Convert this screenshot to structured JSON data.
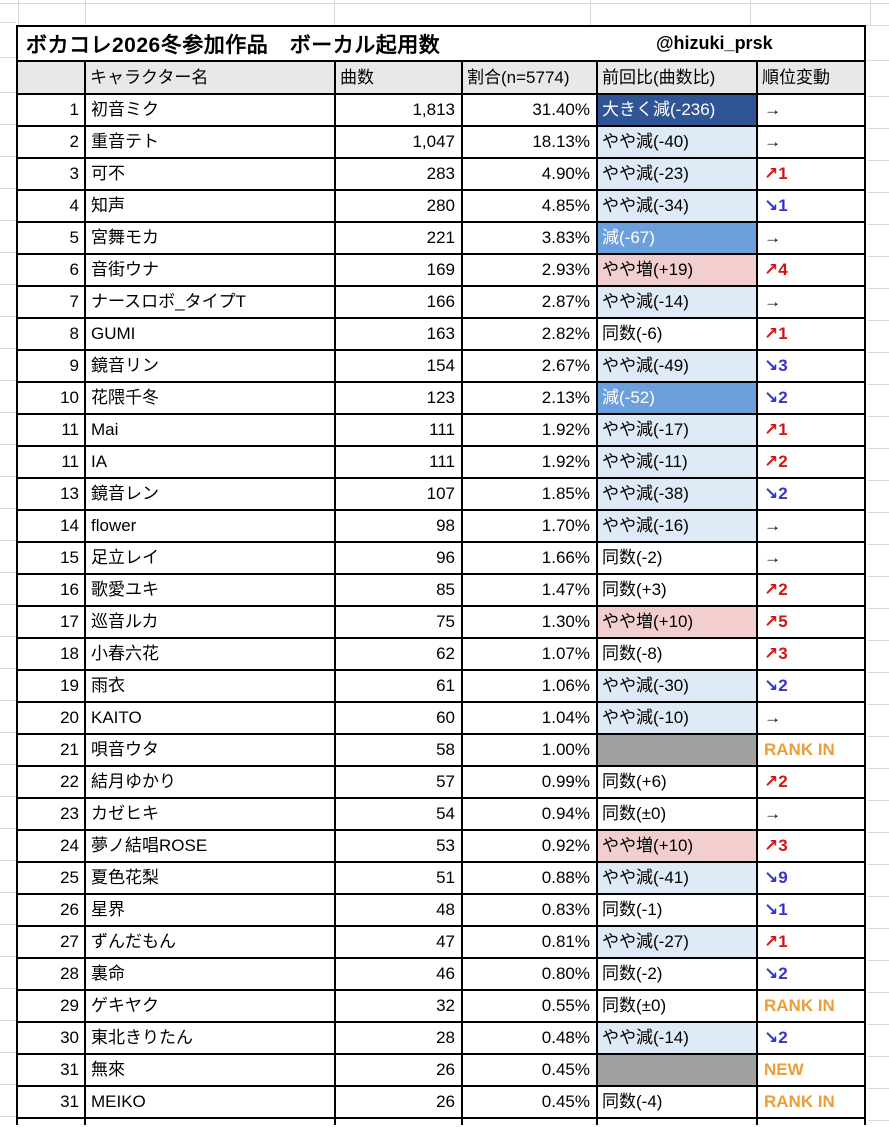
{
  "table": {
    "title": "ボカコレ2026冬参加作品　ボーカル起用数",
    "credit": "@hizuki_prsk",
    "headers": {
      "rank": "",
      "name": "キャラクター名",
      "count": "曲数",
      "share": "割合(n=5774)",
      "prev": "前回比(曲数比)",
      "movement": "順位変動"
    },
    "rows": [
      {
        "rank": "1",
        "name": "初音ミク",
        "count": "1,813",
        "share": "31.40%",
        "prev": {
          "text": "大きく減(-236)",
          "style": "big-dec"
        },
        "move": {
          "text": "→",
          "style": "flat"
        }
      },
      {
        "rank": "2",
        "name": "重音テト",
        "count": "1,047",
        "share": "18.13%",
        "prev": {
          "text": "やや減(-40)",
          "style": "slight-dec"
        },
        "move": {
          "text": "→",
          "style": "flat"
        }
      },
      {
        "rank": "3",
        "name": "可不",
        "count": "283",
        "share": "4.90%",
        "prev": {
          "text": "やや減(-23)",
          "style": "slight-dec"
        },
        "move": {
          "text": "↗1",
          "style": "up"
        }
      },
      {
        "rank": "4",
        "name": "知声",
        "count": "280",
        "share": "4.85%",
        "prev": {
          "text": "やや減(-34)",
          "style": "slight-dec"
        },
        "move": {
          "text": "↘1",
          "style": "down"
        }
      },
      {
        "rank": "5",
        "name": "宮舞モカ",
        "count": "221",
        "share": "3.83%",
        "prev": {
          "text": "減(-67)",
          "style": "dec"
        },
        "move": {
          "text": "→",
          "style": "flat"
        }
      },
      {
        "rank": "6",
        "name": "音街ウナ",
        "count": "169",
        "share": "2.93%",
        "prev": {
          "text": "やや増(+19)",
          "style": "inc"
        },
        "move": {
          "text": "↗4",
          "style": "up"
        }
      },
      {
        "rank": "7",
        "name": "ナースロボ_タイプT",
        "count": "166",
        "share": "2.87%",
        "prev": {
          "text": "やや減(-14)",
          "style": "slight-dec"
        },
        "move": {
          "text": "→",
          "style": "flat"
        }
      },
      {
        "rank": "8",
        "name": "GUMI",
        "count": "163",
        "share": "2.82%",
        "prev": {
          "text": "同数(-6)",
          "style": "none"
        },
        "move": {
          "text": "↗1",
          "style": "up"
        }
      },
      {
        "rank": "9",
        "name": "鏡音リン",
        "count": "154",
        "share": "2.67%",
        "prev": {
          "text": "やや減(-49)",
          "style": "slight-dec"
        },
        "move": {
          "text": "↘3",
          "style": "down"
        }
      },
      {
        "rank": "10",
        "name": "花隈千冬",
        "count": "123",
        "share": "2.13%",
        "prev": {
          "text": "減(-52)",
          "style": "dec"
        },
        "move": {
          "text": "↘2",
          "style": "down"
        }
      },
      {
        "rank": "11",
        "name": "Mai",
        "count": "111",
        "share": "1.92%",
        "prev": {
          "text": "やや減(-17)",
          "style": "slight-dec"
        },
        "move": {
          "text": "↗1",
          "style": "up"
        }
      },
      {
        "rank": "11",
        "name": "IA",
        "count": "111",
        "share": "1.92%",
        "prev": {
          "text": "やや減(-11)",
          "style": "slight-dec"
        },
        "move": {
          "text": "↗2",
          "style": "up"
        }
      },
      {
        "rank": "13",
        "name": "鏡音レン",
        "count": "107",
        "share": "1.85%",
        "prev": {
          "text": "やや減(-38)",
          "style": "slight-dec"
        },
        "move": {
          "text": "↘2",
          "style": "down"
        }
      },
      {
        "rank": "14",
        "name": "flower",
        "count": "98",
        "share": "1.70%",
        "prev": {
          "text": "やや減(-16)",
          "style": "slight-dec"
        },
        "move": {
          "text": "→",
          "style": "flat"
        }
      },
      {
        "rank": "15",
        "name": "足立レイ",
        "count": "96",
        "share": "1.66%",
        "prev": {
          "text": "同数(-2)",
          "style": "none"
        },
        "move": {
          "text": "→",
          "style": "flat"
        }
      },
      {
        "rank": "16",
        "name": "歌愛ユキ",
        "count": "85",
        "share": "1.47%",
        "prev": {
          "text": "同数(+3)",
          "style": "none"
        },
        "move": {
          "text": "↗2",
          "style": "up"
        }
      },
      {
        "rank": "17",
        "name": "巡音ルカ",
        "count": "75",
        "share": "1.30%",
        "prev": {
          "text": "やや増(+10)",
          "style": "inc"
        },
        "move": {
          "text": "↗5",
          "style": "up"
        }
      },
      {
        "rank": "18",
        "name": "小春六花",
        "count": "62",
        "share": "1.07%",
        "prev": {
          "text": "同数(-8)",
          "style": "none"
        },
        "move": {
          "text": "↗3",
          "style": "up"
        }
      },
      {
        "rank": "19",
        "name": "雨衣",
        "count": "61",
        "share": "1.06%",
        "prev": {
          "text": "やや減(-30)",
          "style": "slight-dec"
        },
        "move": {
          "text": "↘2",
          "style": "down"
        }
      },
      {
        "rank": "20",
        "name": "KAITO",
        "count": "60",
        "share": "1.04%",
        "prev": {
          "text": "やや減(-10)",
          "style": "slight-dec"
        },
        "move": {
          "text": "→",
          "style": "flat"
        }
      },
      {
        "rank": "21",
        "name": "唄音ウタ",
        "count": "58",
        "share": "1.00%",
        "prev": {
          "text": "",
          "style": "na"
        },
        "move": {
          "text": "RANK IN",
          "style": "in"
        }
      },
      {
        "rank": "22",
        "name": "結月ゆかり",
        "count": "57",
        "share": "0.99%",
        "prev": {
          "text": "同数(+6)",
          "style": "none"
        },
        "move": {
          "text": "↗2",
          "style": "up"
        }
      },
      {
        "rank": "23",
        "name": "カゼヒキ",
        "count": "54",
        "share": "0.94%",
        "prev": {
          "text": "同数(±0)",
          "style": "none"
        },
        "move": {
          "text": "→",
          "style": "flat"
        }
      },
      {
        "rank": "24",
        "name": "夢ノ結唱ROSE",
        "count": "53",
        "share": "0.92%",
        "prev": {
          "text": "やや増(+10)",
          "style": "inc"
        },
        "move": {
          "text": "↗3",
          "style": "up"
        }
      },
      {
        "rank": "25",
        "name": "夏色花梨",
        "count": "51",
        "share": "0.88%",
        "prev": {
          "text": "やや減(-41)",
          "style": "slight-dec"
        },
        "move": {
          "text": "↘9",
          "style": "down"
        }
      },
      {
        "rank": "26",
        "name": "星界",
        "count": "48",
        "share": "0.83%",
        "prev": {
          "text": "同数(-1)",
          "style": "none"
        },
        "move": {
          "text": "↘1",
          "style": "down"
        }
      },
      {
        "rank": "27",
        "name": "ずんだもん",
        "count": "47",
        "share": "0.81%",
        "prev": {
          "text": "やや減(-27)",
          "style": "slight-dec"
        },
        "move": {
          "text": "↗1",
          "style": "up"
        }
      },
      {
        "rank": "28",
        "name": "裏命",
        "count": "46",
        "share": "0.80%",
        "prev": {
          "text": "同数(-2)",
          "style": "none"
        },
        "move": {
          "text": "↘2",
          "style": "down"
        }
      },
      {
        "rank": "29",
        "name": "ゲキヤク",
        "count": "32",
        "share": "0.55%",
        "prev": {
          "text": "同数(±0)",
          "style": "none"
        },
        "move": {
          "text": "RANK IN",
          "style": "in"
        }
      },
      {
        "rank": "30",
        "name": "東北きりたん",
        "count": "28",
        "share": "0.48%",
        "prev": {
          "text": "やや減(-14)",
          "style": "slight-dec"
        },
        "move": {
          "text": "↘2",
          "style": "down"
        }
      },
      {
        "rank": "31",
        "name": "無來",
        "count": "26",
        "share": "0.45%",
        "prev": {
          "text": "",
          "style": "na"
        },
        "move": {
          "text": "NEW",
          "style": "new"
        }
      },
      {
        "rank": "31",
        "name": "MEIKO",
        "count": "26",
        "share": "0.45%",
        "prev": {
          "text": "同数(-4)",
          "style": "none"
        },
        "move": {
          "text": "RANK IN",
          "style": "in"
        }
      }
    ]
  },
  "colors": {
    "big_decrease_bg": "#2f5597",
    "decrease_bg": "#6ca0dc",
    "slight_decrease_bg": "#deeaf6",
    "slight_increase_bg": "#f2cece",
    "no_data_bg": "#a0a0a0",
    "header_bg": "#e8e8e8",
    "up_arrow": "#d21414",
    "down_arrow": "#3333cc",
    "rank_in_text": "#ec9d33"
  }
}
